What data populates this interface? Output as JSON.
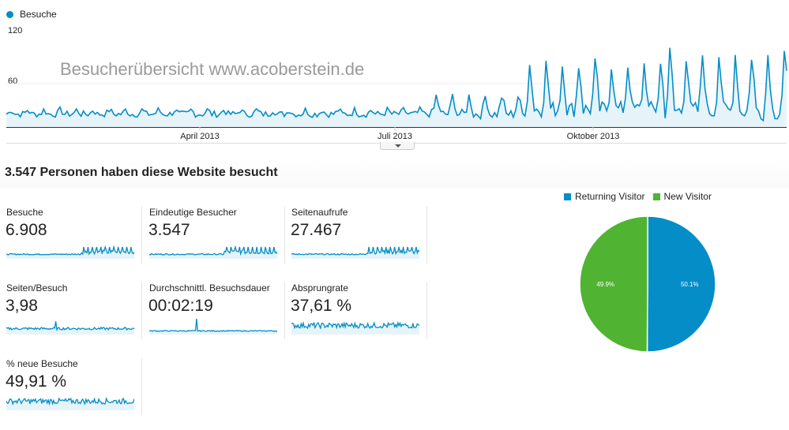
{
  "chart_data": [
    {
      "type": "line",
      "series": [
        {
          "name": "Besuche",
          "color": "#058dc7"
        }
      ],
      "ylim": [
        0,
        120
      ],
      "yticks": [
        "120",
        "60"
      ],
      "xticks": [
        "April 2013",
        "Juli 2013",
        "Oktober 2013"
      ],
      "segments": [
        {
          "days": 182,
          "base": 16,
          "amp": 5,
          "noise": 4
        },
        {
          "days": 40,
          "base": 16,
          "amp": 22,
          "noise": 6
        },
        {
          "days": 60,
          "base": 22,
          "amp": 55,
          "noise": 10
        },
        {
          "days": 53,
          "base": 20,
          "amp": 70,
          "noise": 12
        }
      ],
      "max": 120
    },
    {
      "type": "pie",
      "slices": [
        {
          "name": "Returning Visitor",
          "value": 50.1,
          "label": "50.1%",
          "color": "#058dc7"
        },
        {
          "name": "New Visitor",
          "value": 49.9,
          "label": "49.9%",
          "color": "#50b432"
        }
      ]
    }
  ],
  "chart": {
    "legend_label": "Besuche",
    "ytick_120": "120",
    "ytick_60": "60",
    "xtick_april": "April 2013",
    "xtick_juli": "Juli 2013",
    "xtick_oktober": "Oktober 2013",
    "watermark": "Besucherübersicht www.acoberstein.de"
  },
  "summary": {
    "headline": "3.547 Personen haben diese Website besucht"
  },
  "metrics": [
    {
      "label": "Besuche",
      "value": "6.908",
      "shape": "visits"
    },
    {
      "label": "Eindeutige Besucher",
      "value": "3.547",
      "shape": "visits"
    },
    {
      "label": "Seitenaufrufe",
      "value": "27.467",
      "shape": "visits"
    },
    {
      "label": "Seiten/Besuch",
      "value": "3,98",
      "shape": "flat"
    },
    {
      "label": "Durchschnittl. Besuchsdauer",
      "value": "00:02:19",
      "shape": "spike"
    },
    {
      "label": "Absprungrate",
      "value": "37,61 %",
      "shape": "noisy"
    },
    {
      "label": "% neue Besuche",
      "value": "49,91 %",
      "shape": "noisy"
    }
  ],
  "pie_legend": {
    "returning": "Returning Visitor",
    "new": "New Visitor",
    "returning_color": "#058dc7",
    "new_color": "#50b432"
  }
}
